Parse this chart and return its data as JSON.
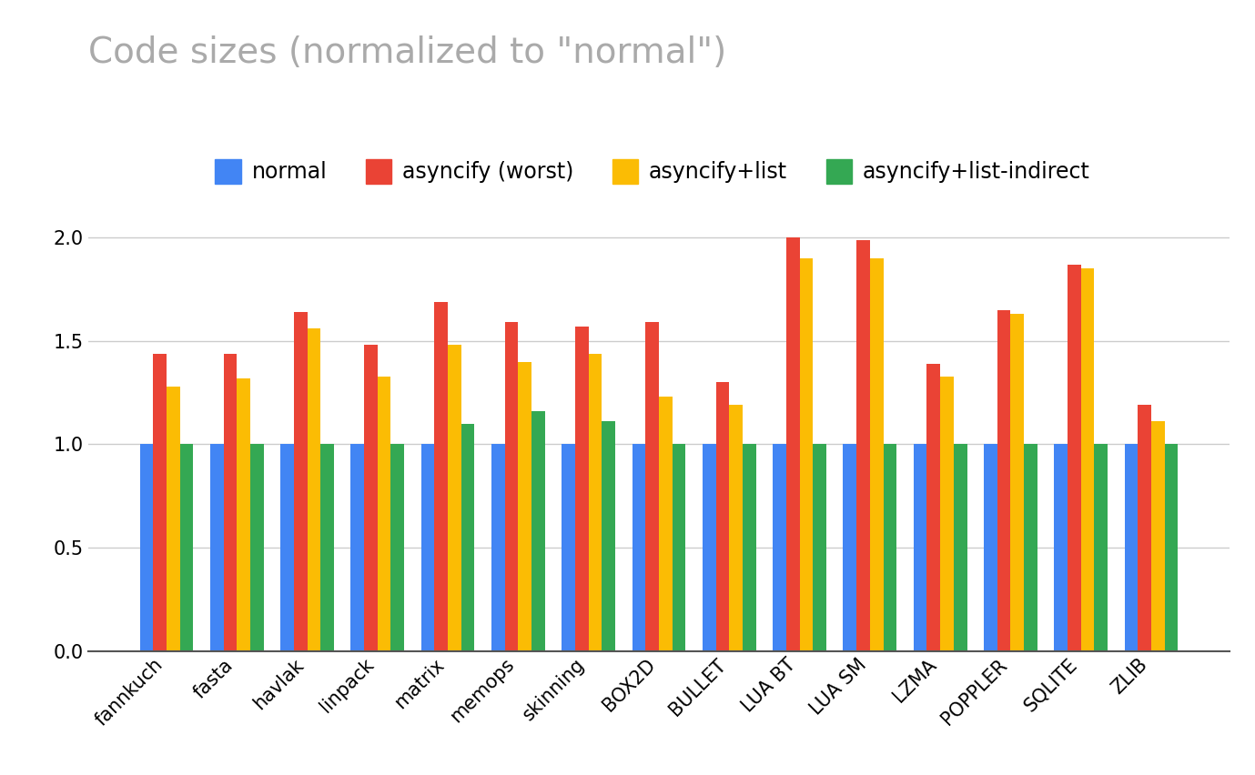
{
  "title": "Code sizes (normalized to \"normal\")",
  "categories": [
    "fannkuch",
    "fasta",
    "havlak",
    "linpack",
    "matrix",
    "memops",
    "skinning",
    "BOX2D",
    "BULLET",
    "LUA BT",
    "LUA SM",
    "LZMA",
    "POPPLER",
    "SQLITE",
    "ZLIB"
  ],
  "series": {
    "normal": [
      1.0,
      1.0,
      1.0,
      1.0,
      1.0,
      1.0,
      1.0,
      1.0,
      1.0,
      1.0,
      1.0,
      1.0,
      1.0,
      1.0,
      1.0
    ],
    "asyncify (worst)": [
      1.44,
      1.44,
      1.64,
      1.48,
      1.69,
      1.59,
      1.57,
      1.59,
      1.3,
      2.0,
      1.99,
      1.39,
      1.65,
      1.87,
      1.19
    ],
    "asyncify+list": [
      1.28,
      1.32,
      1.56,
      1.33,
      1.48,
      1.4,
      1.44,
      1.23,
      1.19,
      1.9,
      1.9,
      1.33,
      1.63,
      1.85,
      1.11
    ],
    "asyncify+list-indirect": [
      1.0,
      1.0,
      1.0,
      1.0,
      1.1,
      1.16,
      1.11,
      1.0,
      1.0,
      1.0,
      1.0,
      1.0,
      1.0,
      1.0,
      1.0
    ]
  },
  "colors": {
    "normal": "#4285f4",
    "asyncify (worst)": "#ea4335",
    "asyncify+list": "#fbbc04",
    "asyncify+list-indirect": "#34a853"
  },
  "ylim": [
    0,
    2.1
  ],
  "yticks": [
    0,
    0.5,
    1.0,
    1.5,
    2.0
  ],
  "background_color": "#ffffff",
  "grid_color": "#cccccc",
  "title_fontsize": 28,
  "title_color": "#aaaaaa",
  "legend_fontsize": 17,
  "tick_fontsize": 15,
  "bar_width": 0.19
}
